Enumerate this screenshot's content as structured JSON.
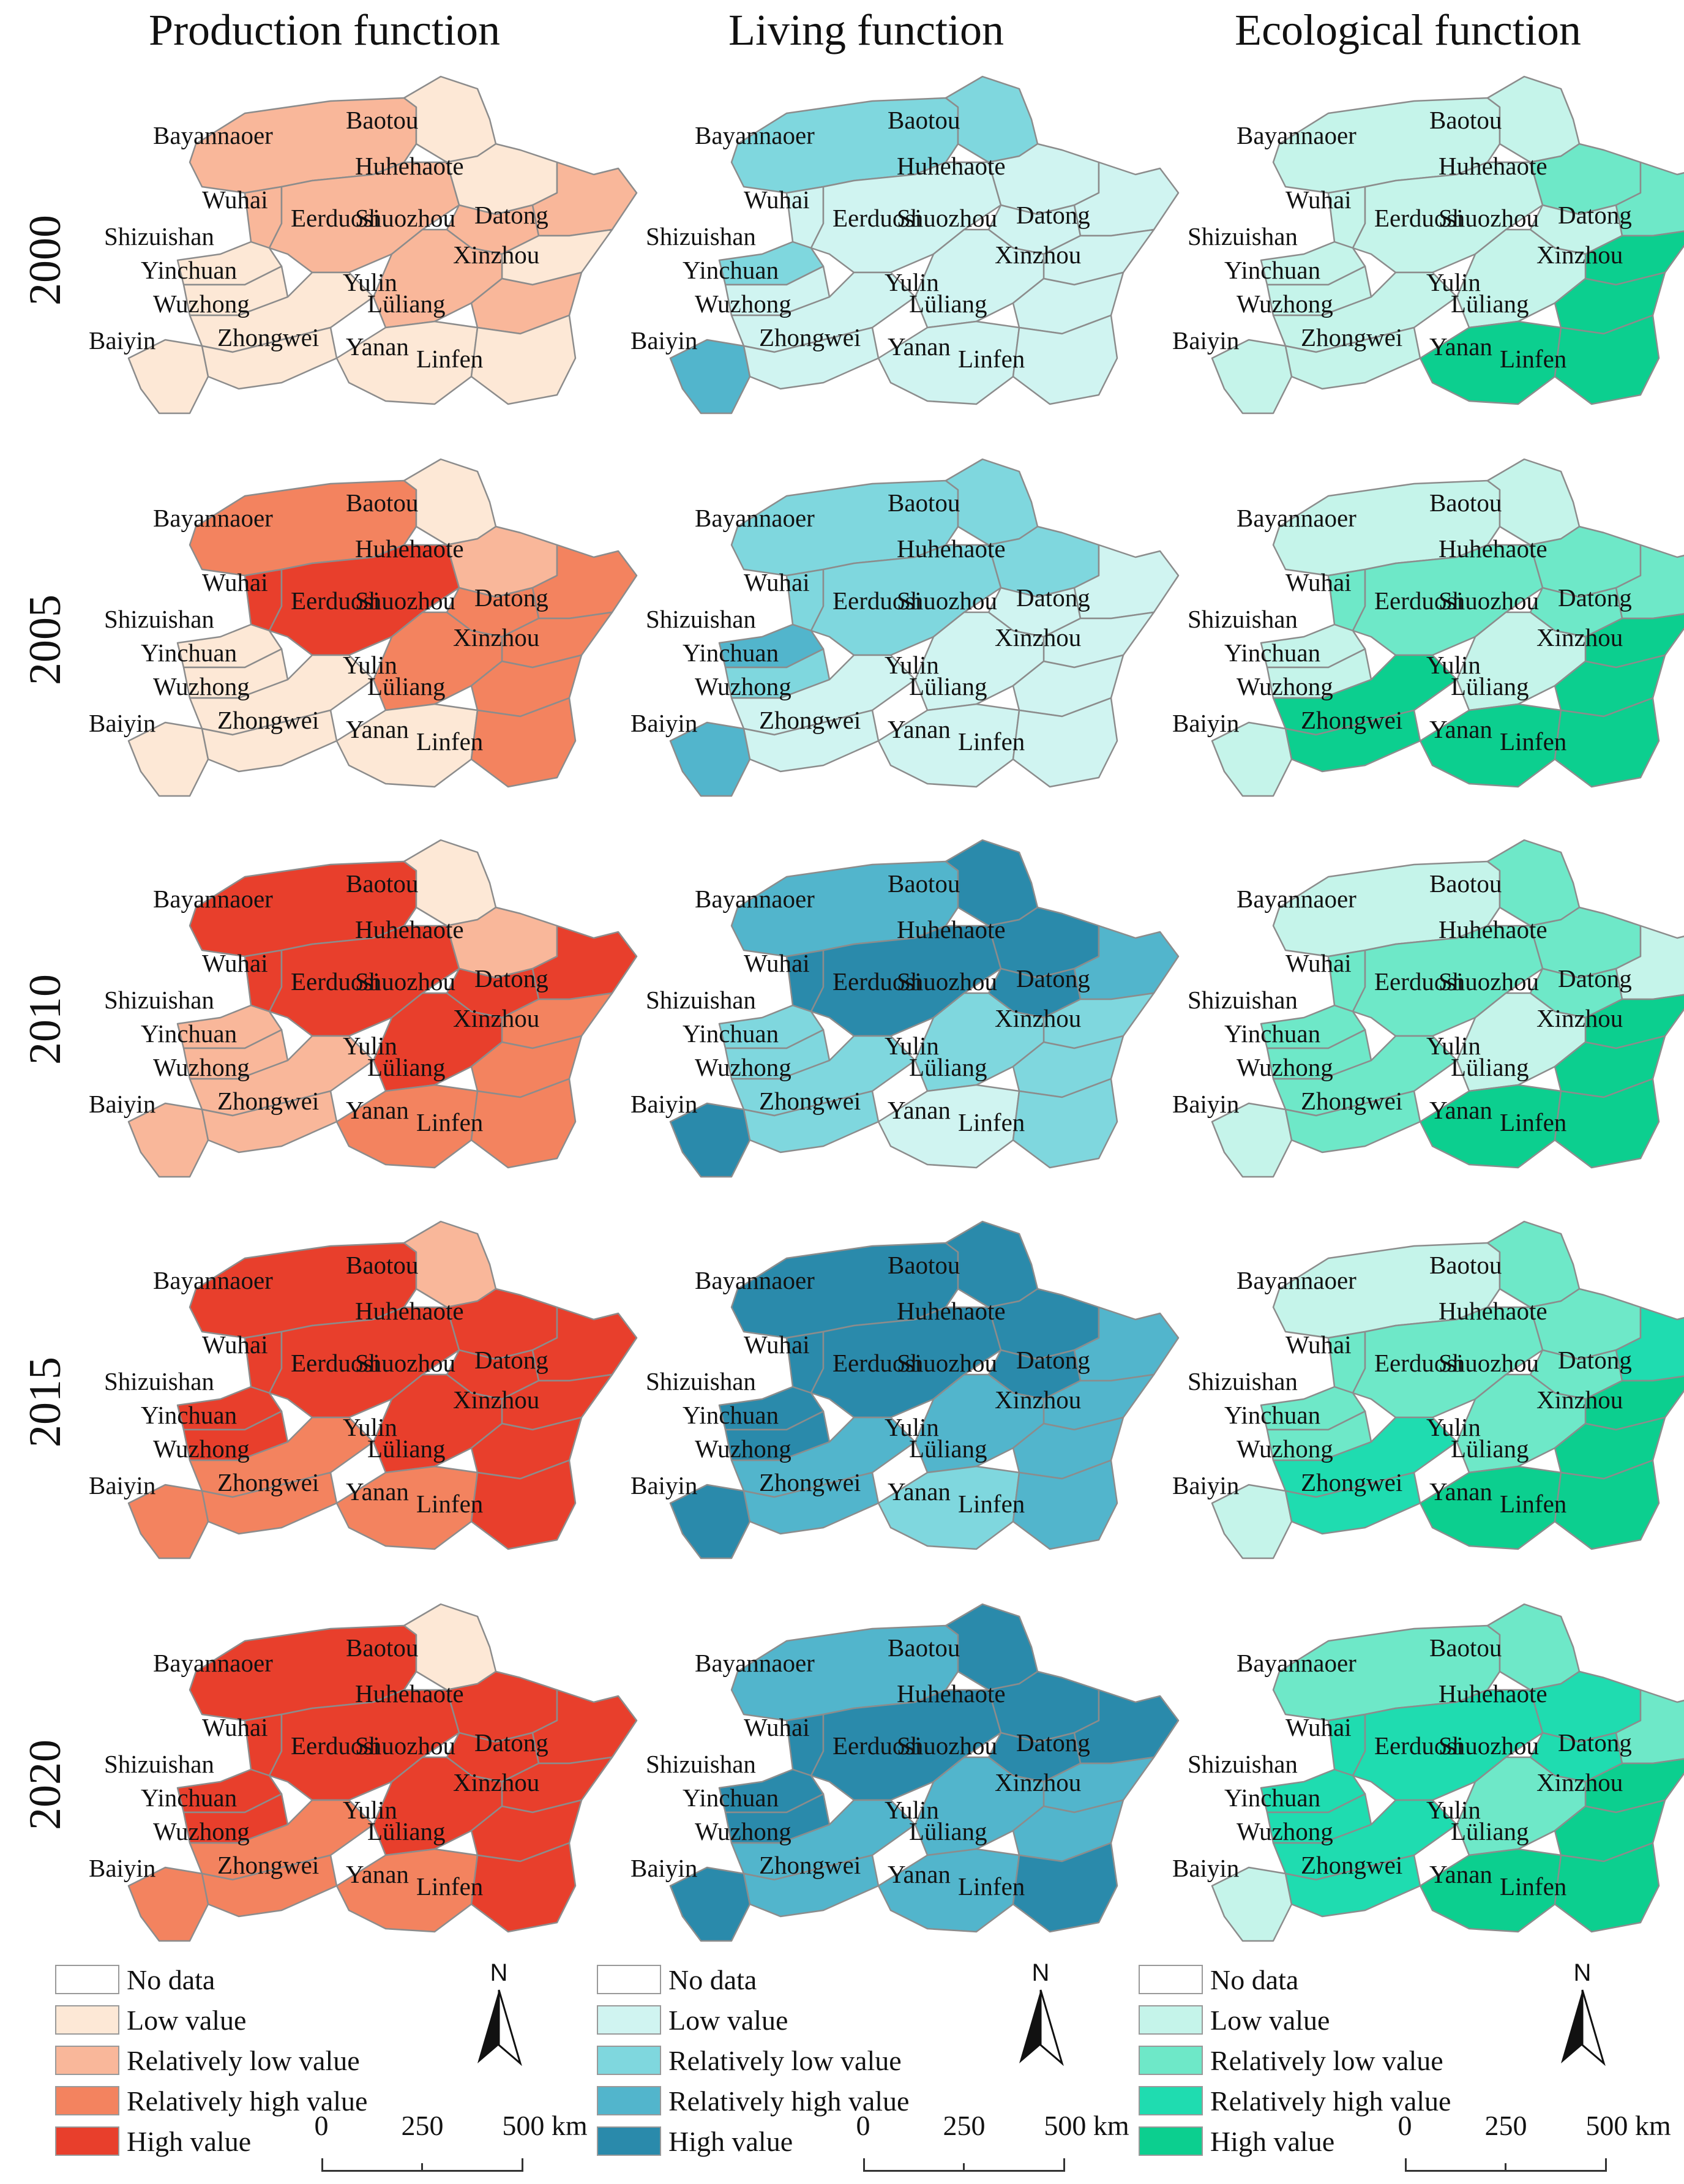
{
  "column_titles": [
    "Production function",
    "Living function",
    "Ecological function"
  ],
  "years": [
    "2000",
    "2005",
    "2010",
    "2015",
    "2020"
  ],
  "region_labels": [
    "Bayannaoer",
    "Baotou",
    "Huhehaote",
    "Wuhai",
    "Eerduosi",
    "Shuozhou",
    "Datong",
    "Shizuishan",
    "Xinzhou",
    "Yinchuan",
    "Yulin",
    "Lüliang",
    "Wuzhong",
    "Baiyin",
    "Zhongwei",
    "Yanan",
    "Linfen"
  ],
  "legend": {
    "items": [
      "No data",
      "Low value",
      "Relatively low value",
      "Relatively high value",
      "High value"
    ],
    "palettes": {
      "production": [
        "#ffffff",
        "#fde8d6",
        "#f9b79a",
        "#f3835f",
        "#e83f2c"
      ],
      "living": [
        "#ffffff",
        "#d0f4f1",
        "#7fd7de",
        "#52b5cc",
        "#2a8aab"
      ],
      "ecological": [
        "#ffffff",
        "#c5f4ea",
        "#6ee8c8",
        "#1fdcb0",
        "#0ccf8f"
      ]
    }
  },
  "north_label": "N",
  "scale_bar": {
    "ticks": [
      "0",
      "250",
      "500 km"
    ]
  },
  "chart_data": {
    "type": "choropleth",
    "classes": [
      "No data",
      "Low value",
      "Relatively low value",
      "Relatively high value",
      "High value"
    ],
    "regions": [
      "Bayannaoer",
      "Baotou",
      "Huhehaote",
      "Wuhai",
      "Eerduosi",
      "Shuozhou",
      "Datong",
      "Shizuishan",
      "Xinzhou",
      "Yinchuan",
      "Yulin",
      "Lüliang",
      "Wuzhong",
      "Baiyin",
      "Zhongwei",
      "Yanan",
      "Linfen"
    ],
    "class_by_panel": {
      "production": {
        "2000": [
          2,
          1,
          1,
          2,
          2,
          2,
          2,
          1,
          1,
          1,
          2,
          2,
          1,
          1,
          1,
          1,
          1
        ],
        "2005": [
          3,
          1,
          2,
          4,
          4,
          3,
          3,
          1,
          3,
          1,
          3,
          3,
          1,
          1,
          1,
          1,
          3
        ],
        "2010": [
          4,
          1,
          2,
          4,
          4,
          4,
          4,
          2,
          3,
          2,
          4,
          3,
          2,
          2,
          2,
          3,
          3
        ],
        "2015": [
          4,
          2,
          4,
          4,
          4,
          4,
          4,
          4,
          4,
          4,
          4,
          4,
          3,
          3,
          3,
          3,
          4
        ],
        "2020": [
          4,
          1,
          4,
          4,
          4,
          4,
          4,
          4,
          4,
          4,
          4,
          4,
          3,
          3,
          3,
          3,
          4
        ]
      },
      "living": {
        "2000": [
          2,
          2,
          1,
          1,
          1,
          1,
          1,
          2,
          1,
          1,
          1,
          1,
          1,
          3,
          1,
          1,
          1
        ],
        "2005": [
          2,
          2,
          2,
          2,
          2,
          1,
          1,
          3,
          1,
          2,
          1,
          1,
          1,
          3,
          1,
          1,
          1
        ],
        "2010": [
          3,
          4,
          4,
          4,
          4,
          4,
          3,
          2,
          2,
          2,
          2,
          2,
          2,
          4,
          2,
          1,
          2
        ],
        "2015": [
          4,
          4,
          4,
          4,
          4,
          4,
          3,
          4,
          3,
          4,
          3,
          3,
          3,
          4,
          3,
          2,
          3
        ],
        "2020": [
          3,
          4,
          4,
          4,
          4,
          4,
          4,
          4,
          3,
          4,
          3,
          3,
          3,
          4,
          3,
          3,
          4
        ]
      },
      "ecological": {
        "2000": [
          1,
          1,
          2,
          1,
          1,
          1,
          2,
          1,
          4,
          1,
          1,
          4,
          1,
          1,
          1,
          4,
          4
        ],
        "2005": [
          1,
          1,
          2,
          2,
          2,
          2,
          2,
          1,
          4,
          1,
          1,
          4,
          4,
          1,
          4,
          4,
          4
        ],
        "2010": [
          1,
          2,
          2,
          2,
          2,
          2,
          1,
          2,
          4,
          2,
          1,
          4,
          2,
          1,
          2,
          4,
          4
        ],
        "2015": [
          1,
          2,
          2,
          2,
          2,
          2,
          3,
          2,
          4,
          2,
          2,
          4,
          3,
          1,
          3,
          4,
          4
        ],
        "2020": [
          2,
          2,
          3,
          3,
          3,
          3,
          2,
          3,
          4,
          3,
          2,
          4,
          3,
          1,
          3,
          4,
          4
        ]
      }
    }
  }
}
